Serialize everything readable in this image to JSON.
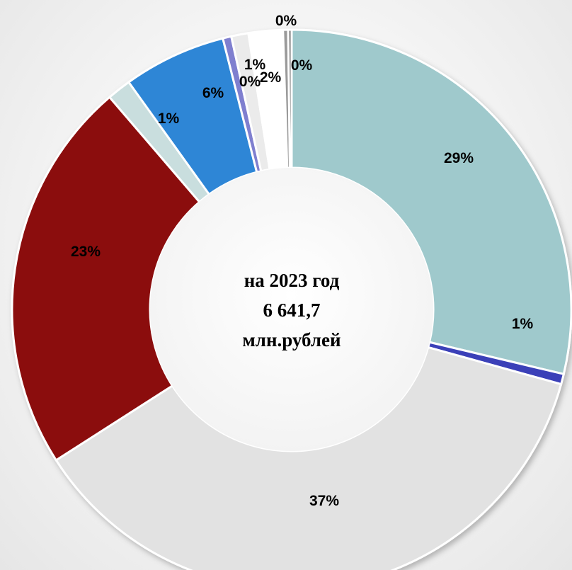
{
  "chart_data": {
    "type": "pie",
    "variant": "donut",
    "center_text": [
      "на 2023 год",
      "6 641,7",
      "млн.рублей"
    ],
    "slices": [
      {
        "value": 29,
        "label": "29%",
        "color": "#9fc9cc"
      },
      {
        "value": 0.6,
        "label": "1%",
        "color": "#3a40b8"
      },
      {
        "value": 37,
        "label": "37%",
        "color": "#e2e2e2"
      },
      {
        "value": 23,
        "label": "23%",
        "color": "#8b0a0a"
      },
      {
        "value": 1.4,
        "label": "1%",
        "color": "#c9dede"
      },
      {
        "value": 6,
        "label": "6%",
        "color": "#2f86d6"
      },
      {
        "value": 0.5,
        "label": "0%",
        "color": "#7f7fcf"
      },
      {
        "value": 1,
        "label": "1%",
        "color": "#ebebeb"
      },
      {
        "value": 2.0,
        "label": "2%",
        "color": "#ffffff"
      },
      {
        "value": 0.3,
        "label": "0%",
        "color": "#9a9a9a"
      },
      {
        "value": 0.2,
        "label": "0%",
        "color": "#6f6f6f"
      }
    ]
  }
}
